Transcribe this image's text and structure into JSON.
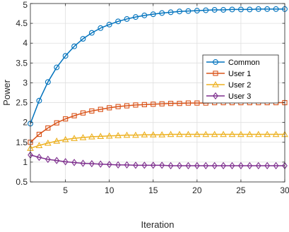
{
  "chart_data": {
    "type": "line",
    "xlabel": "Iteration",
    "ylabel": "Power",
    "xlim": [
      1,
      30
    ],
    "ylim": [
      0.5,
      5
    ],
    "xticks": [
      5,
      10,
      15,
      20,
      25,
      30
    ],
    "xtick_labels": [
      "5",
      "10",
      "15",
      "20",
      "25",
      "30"
    ],
    "yticks": [
      0.5,
      1,
      1.5,
      2,
      2.5,
      3,
      3.5,
      4,
      4.5,
      5
    ],
    "ytick_labels": [
      "0.5",
      "1",
      "1.5",
      "2",
      "2.5",
      "3",
      "3.5",
      "4",
      "4.5",
      "5"
    ],
    "grid": true,
    "legend_position": "center-right",
    "x": [
      1,
      2,
      3,
      4,
      5,
      6,
      7,
      8,
      9,
      10,
      11,
      12,
      13,
      14,
      15,
      16,
      17,
      18,
      19,
      20,
      21,
      22,
      23,
      24,
      25,
      26,
      27,
      28,
      29,
      30
    ],
    "series": [
      {
        "name": "Common",
        "color": "#0072BD",
        "marker": "circle",
        "values": [
          1.97,
          2.55,
          3.02,
          3.39,
          3.68,
          3.92,
          4.11,
          4.26,
          4.38,
          4.47,
          4.55,
          4.61,
          4.66,
          4.7,
          4.73,
          4.76,
          4.78,
          4.8,
          4.81,
          4.82,
          4.83,
          4.84,
          4.84,
          4.85,
          4.85,
          4.85,
          4.86,
          4.86,
          4.86,
          4.86
        ]
      },
      {
        "name": "User 1",
        "color": "#D95319",
        "marker": "square",
        "values": [
          1.5,
          1.7,
          1.86,
          1.99,
          2.09,
          2.17,
          2.24,
          2.29,
          2.33,
          2.37,
          2.4,
          2.42,
          2.44,
          2.45,
          2.46,
          2.47,
          2.48,
          2.48,
          2.49,
          2.49,
          2.49,
          2.5,
          2.5,
          2.5,
          2.5,
          2.5,
          2.5,
          2.5,
          2.5,
          2.5
        ]
      },
      {
        "name": "User 2",
        "color": "#EDB120",
        "marker": "triangle",
        "values": [
          1.35,
          1.42,
          1.48,
          1.53,
          1.57,
          1.6,
          1.62,
          1.64,
          1.65,
          1.66,
          1.67,
          1.68,
          1.68,
          1.69,
          1.69,
          1.69,
          1.7,
          1.7,
          1.7,
          1.7,
          1.7,
          1.7,
          1.7,
          1.7,
          1.7,
          1.7,
          1.7,
          1.7,
          1.7,
          1.7
        ]
      },
      {
        "name": "User 3",
        "color": "#7E2F8E",
        "marker": "diamond",
        "values": [
          1.18,
          1.12,
          1.07,
          1.04,
          1.01,
          0.99,
          0.97,
          0.96,
          0.95,
          0.94,
          0.93,
          0.93,
          0.92,
          0.92,
          0.92,
          0.92,
          0.91,
          0.91,
          0.91,
          0.91,
          0.91,
          0.91,
          0.91,
          0.91,
          0.91,
          0.91,
          0.91,
          0.91,
          0.91,
          0.91
        ]
      }
    ]
  }
}
